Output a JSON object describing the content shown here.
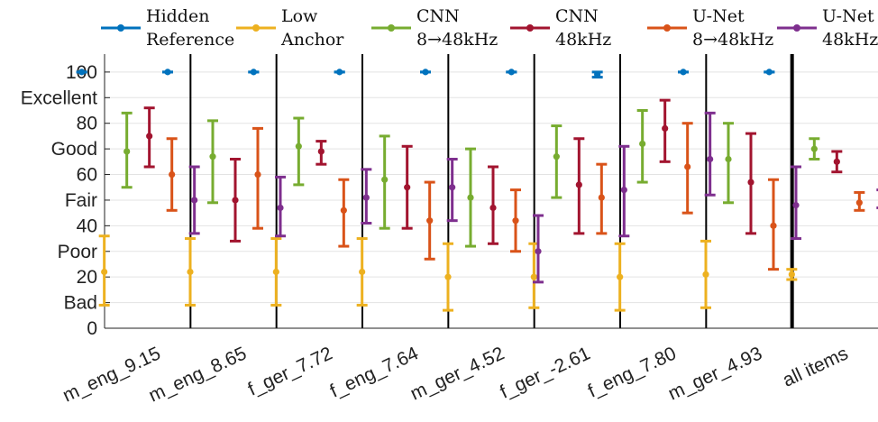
{
  "chart_data": {
    "type": "errorbar",
    "categories": [
      "m_eng_9.15",
      "m_eng_8.65",
      "f_ger_7.72",
      "f_eng_7.64",
      "m_ger_4.52",
      "f_ger_-2.61",
      "f_eng_7.80",
      "m_ger_4.93",
      "all items"
    ],
    "ylim": [
      0,
      107
    ],
    "yticks": [
      {
        "value": 0,
        "label": "0"
      },
      {
        "value": 10,
        "label": "Bad"
      },
      {
        "value": 20,
        "label": "20"
      },
      {
        "value": 30,
        "label": "Poor"
      },
      {
        "value": 40,
        "label": "40"
      },
      {
        "value": 50,
        "label": "Fair"
      },
      {
        "value": 60,
        "label": "60"
      },
      {
        "value": 70,
        "label": "Good"
      },
      {
        "value": 80,
        "label": "80"
      },
      {
        "value": 90,
        "label": "Excellent"
      },
      {
        "value": 100,
        "label": "100"
      }
    ],
    "grid": true,
    "legend_position": "top",
    "series": [
      {
        "name": "Hidden Reference",
        "legend_lines": [
          "Hidden",
          "Reference"
        ],
        "color": "#0072BD",
        "mean": [
          100,
          100,
          100,
          100,
          100,
          100,
          99,
          100,
          100
        ],
        "low": [
          100,
          100,
          100,
          100,
          100,
          100,
          98,
          100,
          100
        ],
        "high": [
          100,
          100,
          100,
          100,
          100,
          100,
          100,
          100,
          100
        ]
      },
      {
        "name": "Low Anchor",
        "legend_lines": [
          "Low",
          "Anchor"
        ],
        "color": "#EDB120",
        "mean": [
          22,
          22,
          22,
          22,
          20,
          20,
          20,
          21,
          21
        ],
        "low": [
          9,
          9,
          9,
          9,
          7,
          8,
          7,
          8,
          19
        ],
        "high": [
          36,
          35,
          35,
          35,
          33,
          33,
          33,
          34,
          23
        ]
      },
      {
        "name": "CNN 8→48kHz",
        "legend_lines": [
          "CNN",
          "8→48kHz"
        ],
        "color": "#77AC30",
        "mean": [
          69,
          67,
          71,
          58,
          51,
          67,
          72,
          66,
          70
        ],
        "low": [
          55,
          49,
          56,
          39,
          32,
          51,
          57,
          49,
          66
        ],
        "high": [
          84,
          81,
          82,
          75,
          70,
          79,
          85,
          80,
          74
        ]
      },
      {
        "name": "CNN 48kHz",
        "legend_lines": [
          "CNN",
          "48kHz"
        ],
        "color": "#A2142F",
        "mean": [
          75,
          50,
          69,
          55,
          47,
          56,
          78,
          57,
          65
        ],
        "low": [
          63,
          34,
          64,
          39,
          33,
          37,
          65,
          37,
          61
        ],
        "high": [
          86,
          66,
          73,
          71,
          63,
          74,
          89,
          76,
          69
        ]
      },
      {
        "name": "U-Net 8→48kHz",
        "legend_lines": [
          "U-Net",
          "8→48kHz"
        ],
        "color": "#D95319",
        "mean": [
          60,
          60,
          46,
          42,
          42,
          51,
          63,
          40,
          49
        ],
        "low": [
          46,
          39,
          32,
          27,
          30,
          37,
          45,
          23,
          46
        ],
        "high": [
          74,
          78,
          58,
          57,
          54,
          64,
          80,
          58,
          53
        ]
      },
      {
        "name": "U-Net 48kHz",
        "legend_lines": [
          "U-Net",
          "48kHz"
        ],
        "color": "#7E2F8E",
        "mean": [
          50,
          47,
          51,
          55,
          30,
          54,
          66,
          48,
          50
        ],
        "low": [
          37,
          36,
          41,
          42,
          18,
          36,
          52,
          35,
          47
        ],
        "high": [
          63,
          59,
          62,
          66,
          44,
          71,
          84,
          63,
          54
        ]
      }
    ]
  }
}
